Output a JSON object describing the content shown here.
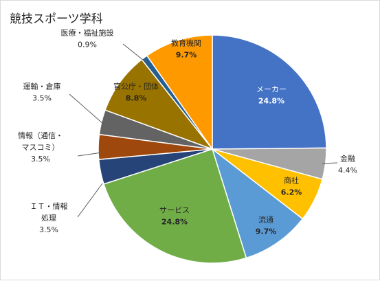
{
  "chart_data": {
    "type": "pie",
    "title": "競技スポーツ学科",
    "start_angle_deg": 0,
    "direction": "clockwise",
    "slices": [
      {
        "label": "メーカー",
        "value": 24.8,
        "display": "24.8%",
        "color": "#4472C4"
      },
      {
        "label": "金融",
        "value": 4.4,
        "display": "4.4%",
        "color": "#A5A5A5"
      },
      {
        "label": "商社",
        "value": 6.2,
        "display": "6.2%",
        "color": "#FFC000"
      },
      {
        "label": "流通",
        "value": 9.7,
        "display": "9.7%",
        "color": "#5B9BD5"
      },
      {
        "label": "サービス",
        "value": 24.8,
        "display": "24.8%",
        "color": "#70AD47"
      },
      {
        "label": "ＩＴ・情報処理",
        "lines": [
          "ＩＴ・情報",
          "処理"
        ],
        "value": 3.5,
        "display": "3.5%",
        "color": "#264478"
      },
      {
        "label": "情報（通信・マスコミ）",
        "lines": [
          "情報（通信・",
          "マスコミ）"
        ],
        "value": 3.5,
        "display": "3.5%",
        "color": "#9E480E"
      },
      {
        "label": "運輸・倉庫",
        "value": 3.5,
        "display": "3.5%",
        "color": "#636363"
      },
      {
        "label": "官公庁・団体",
        "value": 8.8,
        "display": "8.8%",
        "color": "#997300"
      },
      {
        "label": "医療・福祉施設",
        "value": 0.9,
        "display": "0.9%",
        "color": "#255E91"
      },
      {
        "label": "教育機関",
        "value": 9.7,
        "display": "9.7%",
        "color": "#FF9900"
      }
    ]
  }
}
